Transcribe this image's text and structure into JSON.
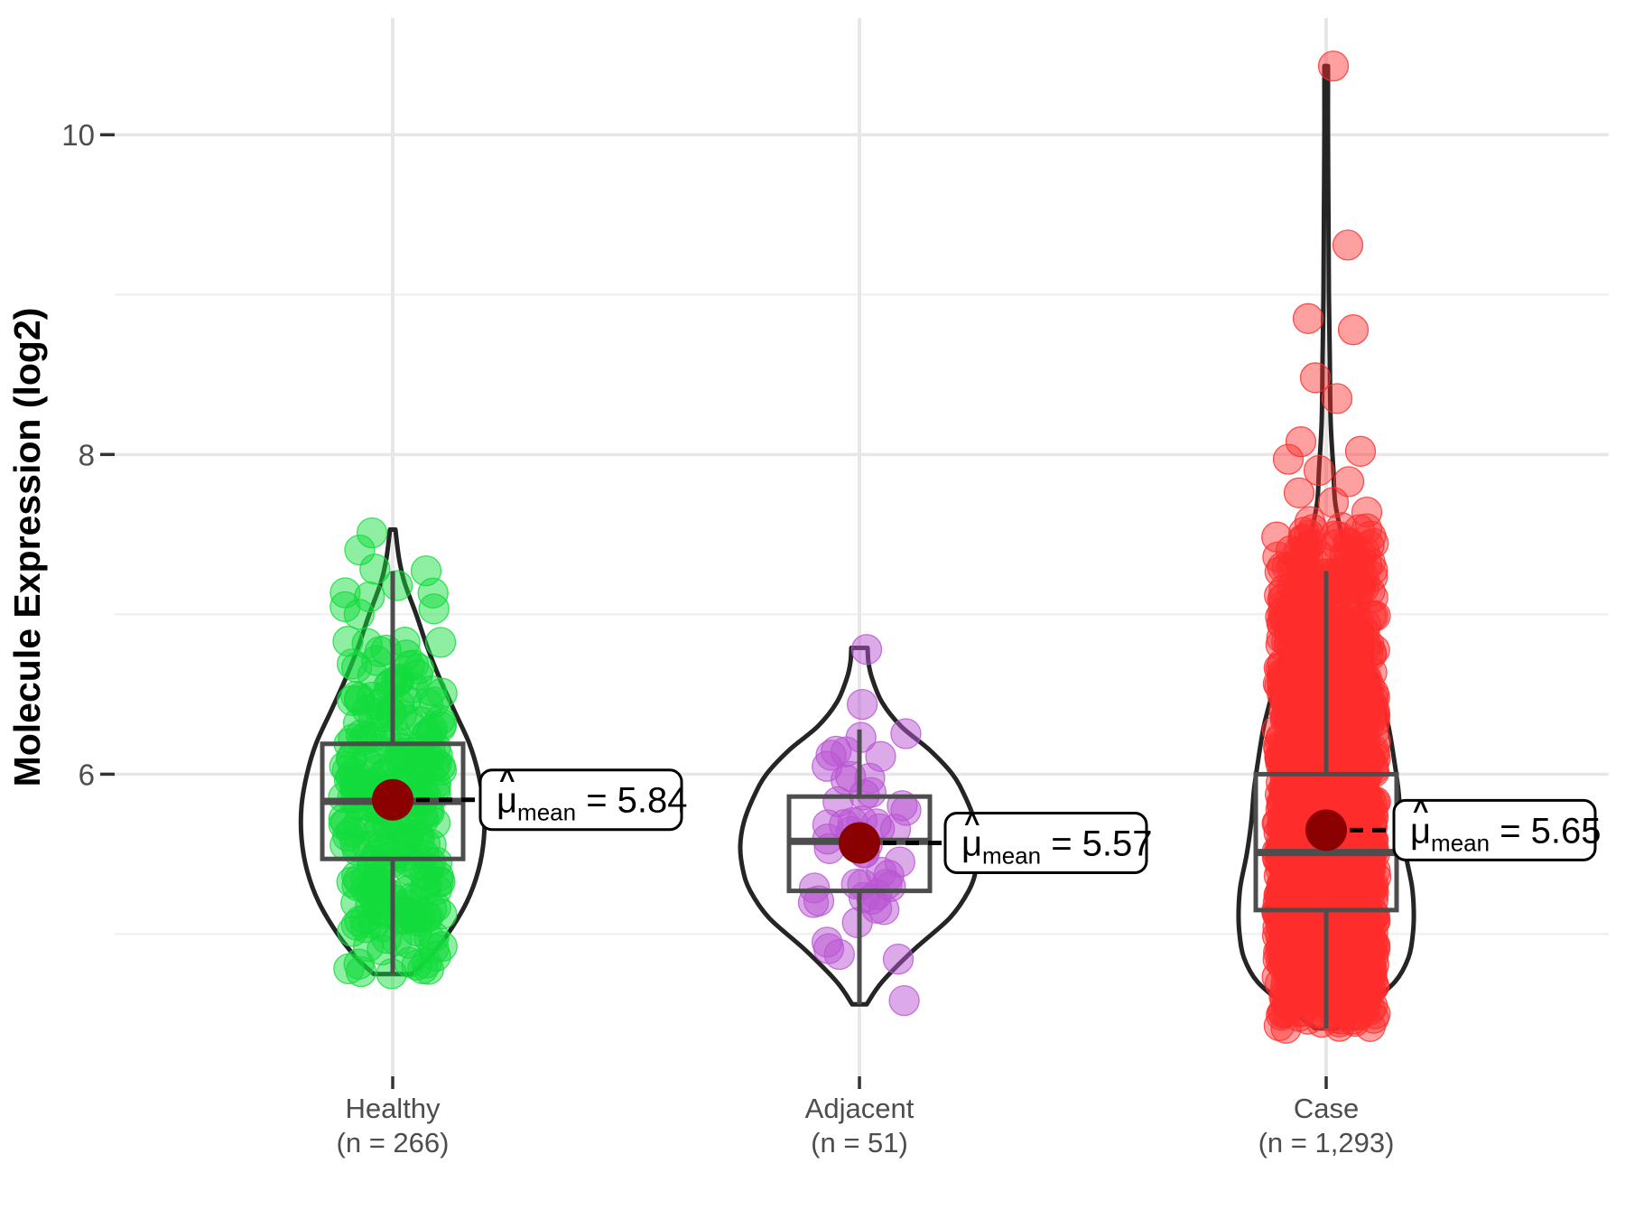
{
  "chart_data": {
    "type": "violin+boxplot+jitter",
    "title": "",
    "ylabel": "Molecule Expression (log2)",
    "xlabel": "",
    "ylim": [
      4.11,
      10.73
    ],
    "y_breaks": [
      6,
      8,
      10
    ],
    "y_minor_breaks": [
      5,
      7,
      9
    ],
    "grid": true,
    "legend": "none",
    "categories": [
      "Healthy",
      "Adjacent",
      "Case"
    ],
    "groups": [
      {
        "id": "healthy",
        "label": "Healthy",
        "sublabel": "(n = 266)",
        "n": 266,
        "point_color": "#12DC3C",
        "point_fill_opacity": 0.48,
        "mean": 5.84,
        "mean_label_value": "5.84",
        "median": 5.83,
        "q1": 5.47,
        "q3": 6.19,
        "whisker_low": 4.75,
        "whisker_high": 7.27,
        "min": 4.75,
        "max": 7.53,
        "violin_profile": [
          [
            4.75,
            21
          ],
          [
            4.85,
            40
          ],
          [
            5.0,
            61
          ],
          [
            5.2,
            82
          ],
          [
            5.4,
            95
          ],
          [
            5.6,
            101
          ],
          [
            5.8,
            101
          ],
          [
            6.0,
            95
          ],
          [
            6.19,
            85
          ],
          [
            6.4,
            68
          ],
          [
            6.6,
            52
          ],
          [
            6.8,
            38
          ],
          [
            7.0,
            26
          ],
          [
            7.2,
            13
          ],
          [
            7.35,
            7
          ],
          [
            7.53,
            3
          ]
        ],
        "explicit_points": [
          [
            7.51,
            -23
          ]
        ],
        "sample_vmax": 7.45,
        "jitter_halfwidth": 55,
        "seed": 11
      },
      {
        "id": "adjacent",
        "label": "Adjacent",
        "sublabel": "(n = 51)",
        "n": 51,
        "point_color": "#BA55D3",
        "point_fill_opacity": 0.5,
        "mean": 5.57,
        "mean_label_value": "5.57",
        "median": 5.58,
        "q1": 5.27,
        "q3": 5.86,
        "whisker_low": 4.56,
        "whisker_high": 6.28,
        "min": 4.56,
        "max": 6.79,
        "violin_profile": [
          [
            4.56,
            8
          ],
          [
            4.7,
            25
          ],
          [
            4.9,
            60
          ],
          [
            5.1,
            100
          ],
          [
            5.27,
            121
          ],
          [
            5.4,
            129
          ],
          [
            5.55,
            132
          ],
          [
            5.7,
            128
          ],
          [
            5.86,
            117
          ],
          [
            6.0,
            103
          ],
          [
            6.15,
            78
          ],
          [
            6.3,
            46
          ],
          [
            6.45,
            25
          ],
          [
            6.6,
            14
          ],
          [
            6.7,
            10
          ],
          [
            6.79,
            9
          ]
        ],
        "explicit_points": [
          [
            6.78,
            8
          ]
        ],
        "sample_vmax": 6.6,
        "jitter_halfwidth": 52,
        "seed": 7
      },
      {
        "id": "case",
        "label": "Case",
        "sublabel": "(n = 1,293)",
        "n": 1293,
        "point_color": "#FF2D2D",
        "point_fill_opacity": 0.45,
        "mean": 5.65,
        "mean_label_value": "5.65",
        "median": 5.51,
        "q1": 5.15,
        "q3": 6.0,
        "whisker_low": 4.41,
        "whisker_high": 7.27,
        "min": 4.41,
        "max": 10.43,
        "violin_profile": [
          [
            4.41,
            12
          ],
          [
            4.55,
            45
          ],
          [
            4.7,
            76
          ],
          [
            4.85,
            91
          ],
          [
            5.0,
            96
          ],
          [
            5.15,
            97
          ],
          [
            5.3,
            95
          ],
          [
            5.5,
            88
          ],
          [
            5.7,
            83
          ],
          [
            5.9,
            80
          ],
          [
            6.1,
            75
          ],
          [
            6.3,
            69
          ],
          [
            6.5,
            60
          ],
          [
            6.7,
            51
          ],
          [
            6.9,
            43
          ],
          [
            7.1,
            35
          ],
          [
            7.3,
            26
          ],
          [
            7.5,
            17
          ],
          [
            7.7,
            10
          ],
          [
            7.9,
            8
          ],
          [
            8.2,
            5
          ],
          [
            8.6,
            4
          ],
          [
            9.0,
            3
          ],
          [
            9.5,
            2.5
          ],
          [
            10.0,
            2
          ],
          [
            10.43,
            2
          ]
        ],
        "explicit_points": [
          [
            10.43,
            8
          ],
          [
            9.31,
            24
          ],
          [
            8.85,
            -20
          ],
          [
            8.78,
            30
          ],
          [
            8.48,
            -12
          ],
          [
            8.35,
            12
          ],
          [
            8.08,
            -28
          ],
          [
            8.02,
            38
          ],
          [
            7.97,
            -42
          ],
          [
            7.9,
            -8
          ],
          [
            7.83,
            25
          ],
          [
            7.76,
            -30
          ],
          [
            7.7,
            8
          ],
          [
            7.64,
            45
          ],
          [
            7.58,
            -18
          ]
        ],
        "sample_vmax": 7.55,
        "jitter_halfwidth": 55,
        "seed": 42
      }
    ],
    "mean_annotation": {
      "symbol": "μ",
      "hat": "^",
      "subscript": "mean",
      "equals": " = "
    }
  },
  "style": {
    "background": "#FFFFFF",
    "grid_major_color": "#E7E7E7",
    "grid_minor_color": "#F1F1F1",
    "axis_text_color": "#4D4D4D",
    "tick_mark_color": "#333333",
    "axis_title_color": "#000000",
    "violin_outline_color": "#252525",
    "box_color": "#4D4D4D",
    "mean_dot_color": "#8B0000",
    "label_box_fill": "#FFFFFF",
    "label_box_border": "#000000",
    "dash_line_color": "#000000"
  }
}
